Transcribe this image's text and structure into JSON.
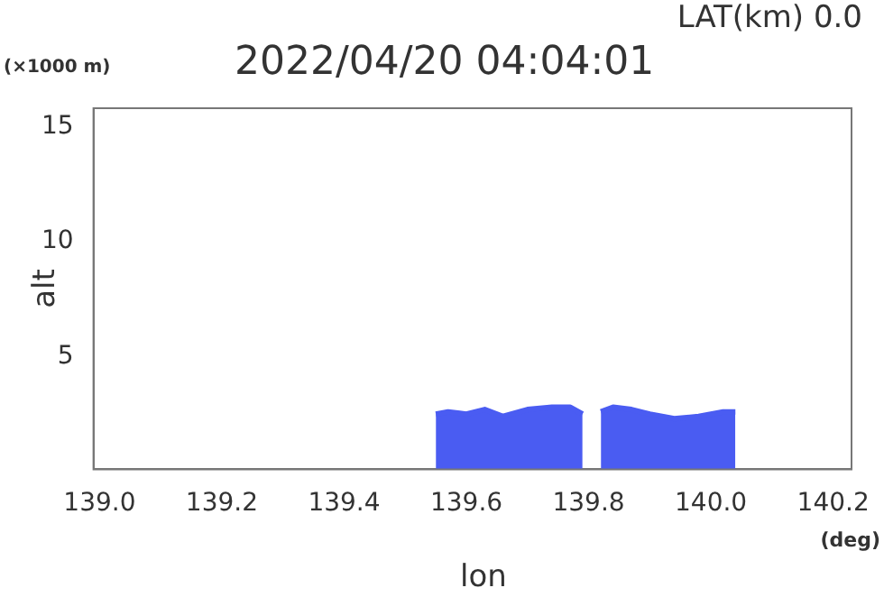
{
  "chart_data": {
    "type": "area",
    "title": "2022/04/20 04:04:01",
    "xlabel": "lon",
    "ylabel": "alt",
    "annotations": [
      "LAT(km) 0.0",
      "(×1000 m)",
      "(deg)"
    ],
    "x": [
      139.55,
      139.57,
      139.6,
      139.63,
      139.66,
      139.7,
      139.74,
      139.77,
      139.79,
      139.805,
      139.82,
      139.84,
      139.87,
      139.9,
      139.94,
      139.98,
      140.02,
      140.04
    ],
    "series": [
      {
        "color": "#4a5cf2",
        "values": [
          2.5,
          2.6,
          2.5,
          2.7,
          2.4,
          2.7,
          2.8,
          2.8,
          2.5,
          null,
          2.6,
          2.8,
          2.7,
          2.5,
          2.3,
          2.4,
          2.6,
          2.6
        ]
      }
    ],
    "xlim": [
      138.99,
      140.23
    ],
    "ylim": [
      0.1,
      15.8
    ],
    "xticks": [
      {
        "value": 139.0,
        "label": "139.0"
      },
      139.2,
      139.4,
      139.6,
      139.8,
      {
        "value": 140.0,
        "label": "140.0"
      },
      140.2
    ],
    "yticks": [
      5,
      10,
      15
    ],
    "grid": false,
    "legend": false
  }
}
